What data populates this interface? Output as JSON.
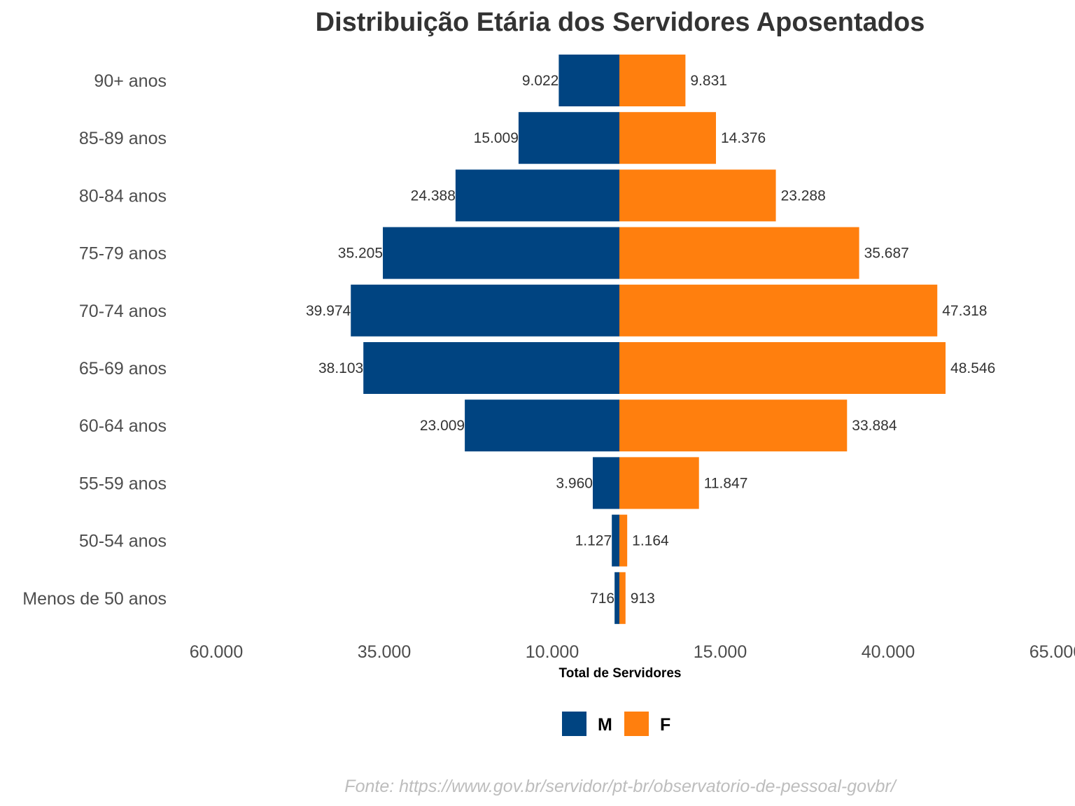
{
  "chart_data": {
    "type": "bar",
    "orientation": "horizontal",
    "layout": "population-pyramid",
    "title": "Distribuição Etária dos Servidores Aposentados",
    "xlabel": "Total de Servidores",
    "ylabel": "",
    "caption": "Fonte: https://www.gov.br/servidor/pt-br/observatorio-de-pessoal-govbr/",
    "categories": [
      "90+ anos",
      "85-89 anos",
      "80-84 anos",
      "75-79 anos",
      "70-74 anos",
      "65-69 anos",
      "60-64 anos",
      "55-59 anos",
      "50-54 anos",
      "Menos de 50 anos"
    ],
    "series": [
      {
        "name": "M",
        "color": "#004481",
        "side": "left",
        "values": [
          9022,
          15009,
          24388,
          35205,
          39974,
          38103,
          23009,
          3960,
          1127,
          716
        ],
        "labels": [
          "9.022",
          "15.009",
          "24.388",
          "35.205",
          "39.974",
          "38.103",
          "23.009",
          "3.960",
          "1.127",
          "716"
        ]
      },
      {
        "name": "F",
        "color": "#FF7F0E",
        "side": "right",
        "values": [
          9831,
          14376,
          23288,
          35687,
          47318,
          48546,
          33884,
          11847,
          1164,
          913
        ],
        "labels": [
          "9.831",
          "14.376",
          "23.288",
          "35.687",
          "47.318",
          "48.546",
          "33.884",
          "11.847",
          "1.164",
          "913"
        ]
      }
    ],
    "xlim": [
      -60000,
      65000
    ],
    "xticks": [
      -60000,
      -35000,
      -10000,
      15000,
      40000,
      65000
    ],
    "xtick_labels": [
      "60.000",
      "35.000",
      "10.000",
      "15.000",
      "40.000",
      "65.000"
    ],
    "grid": false,
    "legend": {
      "position": "bottom",
      "entries": [
        {
          "label": "M",
          "color": "#004481"
        },
        {
          "label": "F",
          "color": "#FF7F0E"
        }
      ]
    }
  }
}
